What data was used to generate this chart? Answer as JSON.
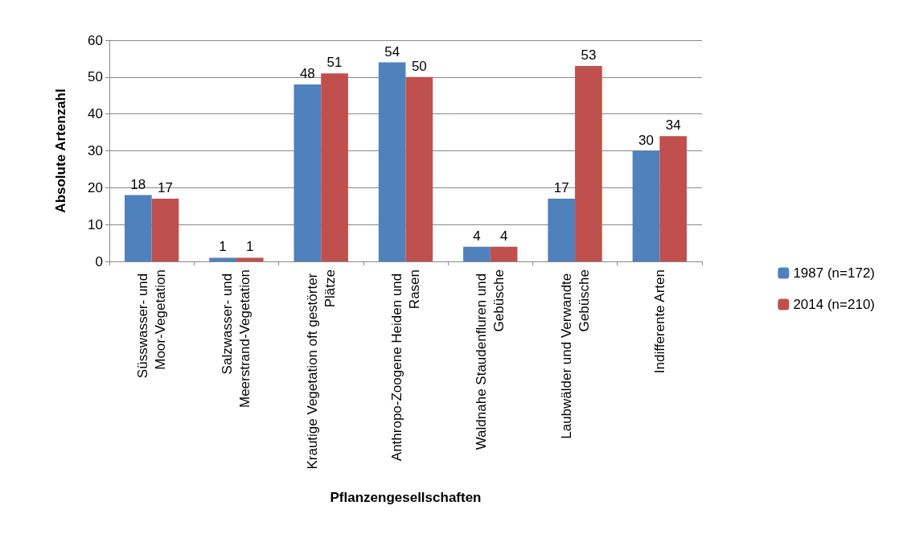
{
  "chart_data": {
    "type": "bar",
    "xlabel": "Pflanzengesellschaften",
    "ylabel": "Absolute Artenzahl",
    "categories": [
      "Süsswasser- und Moor-Vegetation",
      "Salzwasser- und Meerstrand-Vegetation",
      "Krautige Vegetation oft gestörter Plätze",
      "Anthropo-Zoogene Heiden und Rasen",
      "Waldnahe Staudenfluren und Gebüsche",
      "Laubwälder und Verwandte Gebüsche",
      "Indifferente Arten"
    ],
    "series": [
      {
        "name": "1987 (n=172)",
        "color": "#4f81bd",
        "values": [
          18,
          1,
          48,
          54,
          4,
          17,
          30
        ]
      },
      {
        "name": "2014 (n=210)",
        "color": "#c0504d",
        "values": [
          17,
          1,
          51,
          50,
          4,
          53,
          34
        ]
      }
    ],
    "ylim": [
      0,
      60
    ],
    "yticks": [
      0,
      10,
      20,
      30,
      40,
      50,
      60
    ],
    "grid": "y",
    "legend": "right",
    "data_labels": true
  }
}
